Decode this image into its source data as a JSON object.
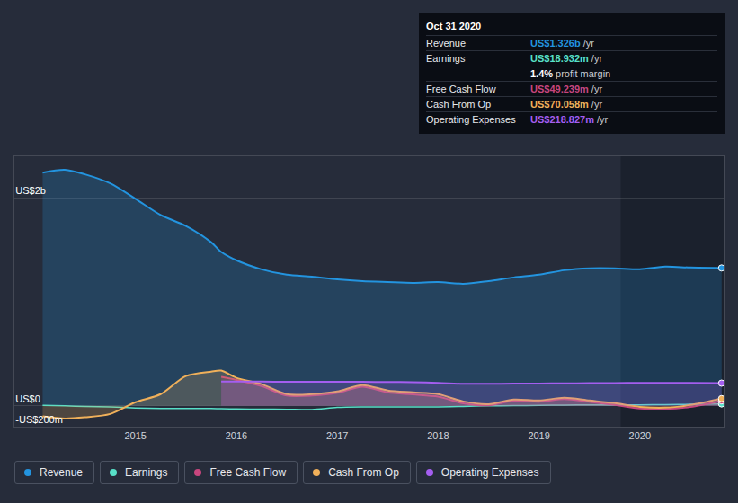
{
  "chart_data": {
    "type": "area",
    "x": [
      2014.08,
      2014.3,
      2014.5,
      2014.75,
      2015,
      2015.25,
      2015.5,
      2015.75,
      2015.85,
      2016,
      2016.25,
      2016.5,
      2016.75,
      2017,
      2017.25,
      2017.5,
      2017.75,
      2018,
      2018.25,
      2018.5,
      2018.75,
      2019,
      2019.25,
      2019.5,
      2019.75,
      2020,
      2020.25,
      2020.5,
      2020.81
    ],
    "xlim": [
      2013.8,
      2020.83
    ],
    "xticks": [
      2015,
      2016,
      2017,
      2018,
      2019,
      2020
    ],
    "ylim": [
      -200,
      2400
    ],
    "yticks": [
      {
        "value": -200,
        "label": "-US$200m"
      },
      {
        "value": 0,
        "label": "US$0"
      },
      {
        "value": 2000,
        "label": "US$2b"
      }
    ],
    "grid": true,
    "series": [
      {
        "name": "Revenue",
        "color": "#2394df",
        "type": "area",
        "values": [
          2243,
          2270,
          2226,
          2139,
          1991,
          1835,
          1730,
          1574,
          1480,
          1400,
          1313,
          1261,
          1243,
          1217,
          1200,
          1191,
          1183,
          1191,
          1174,
          1200,
          1235,
          1261,
          1304,
          1322,
          1322,
          1313,
          1339,
          1330,
          1326
        ]
      },
      {
        "name": "Earnings",
        "color": "#58e0c8",
        "type": "line",
        "values": [
          5,
          0,
          -5,
          -10,
          -20,
          -25,
          -25,
          -25,
          -28,
          -30,
          -32,
          -33,
          -35,
          -15,
          -10,
          -10,
          -10,
          -10,
          -5,
          0,
          2,
          5,
          8,
          10,
          8,
          10,
          12,
          15,
          18.932
        ]
      },
      {
        "name": "Free Cash Flow",
        "color": "#c8467e",
        "type": "area",
        "values": [
          null,
          null,
          null,
          null,
          null,
          null,
          null,
          null,
          280,
          250,
          190,
          100,
          100,
          125,
          185,
          130,
          110,
          90,
          25,
          5,
          50,
          40,
          65,
          40,
          10,
          -25,
          -30,
          -10,
          49.239
        ]
      },
      {
        "name": "Cash From Op",
        "color": "#f0b05a",
        "type": "area",
        "values": [
          -100,
          -122,
          -110,
          -78,
          35,
          113,
          287,
          330,
          339,
          270,
          209,
          113,
          113,
          139,
          200,
          148,
          130,
          113,
          43,
          17,
          61,
          52,
          78,
          52,
          26,
          -9,
          -17,
          9,
          70.058
        ]
      },
      {
        "name": "Operating Expenses",
        "color": "#a45ef0",
        "type": "area",
        "values": [
          null,
          null,
          null,
          null,
          null,
          null,
          null,
          null,
          235,
          234,
          233,
          232,
          232,
          232,
          231,
          229,
          228,
          222,
          212,
          213,
          214,
          215,
          217,
          218,
          220,
          222,
          222,
          222,
          218.827
        ]
      }
    ],
    "tooltip": {
      "title": "Oct 31 2020",
      "rows": [
        {
          "series": "Revenue",
          "value": "US$1.326b",
          "unit": "/yr"
        },
        {
          "series": "Earnings",
          "value": "US$18.932m",
          "unit": "/yr"
        },
        {
          "value": "1.4%",
          "unit": "profit margin"
        },
        {
          "series": "Free Cash Flow",
          "value": "US$49.239m",
          "unit": "/yr"
        },
        {
          "series": "Cash From Op",
          "value": "US$70.058m",
          "unit": "/yr"
        },
        {
          "series": "Operating Expenses",
          "value": "US$218.827m",
          "unit": "/yr"
        }
      ]
    }
  }
}
